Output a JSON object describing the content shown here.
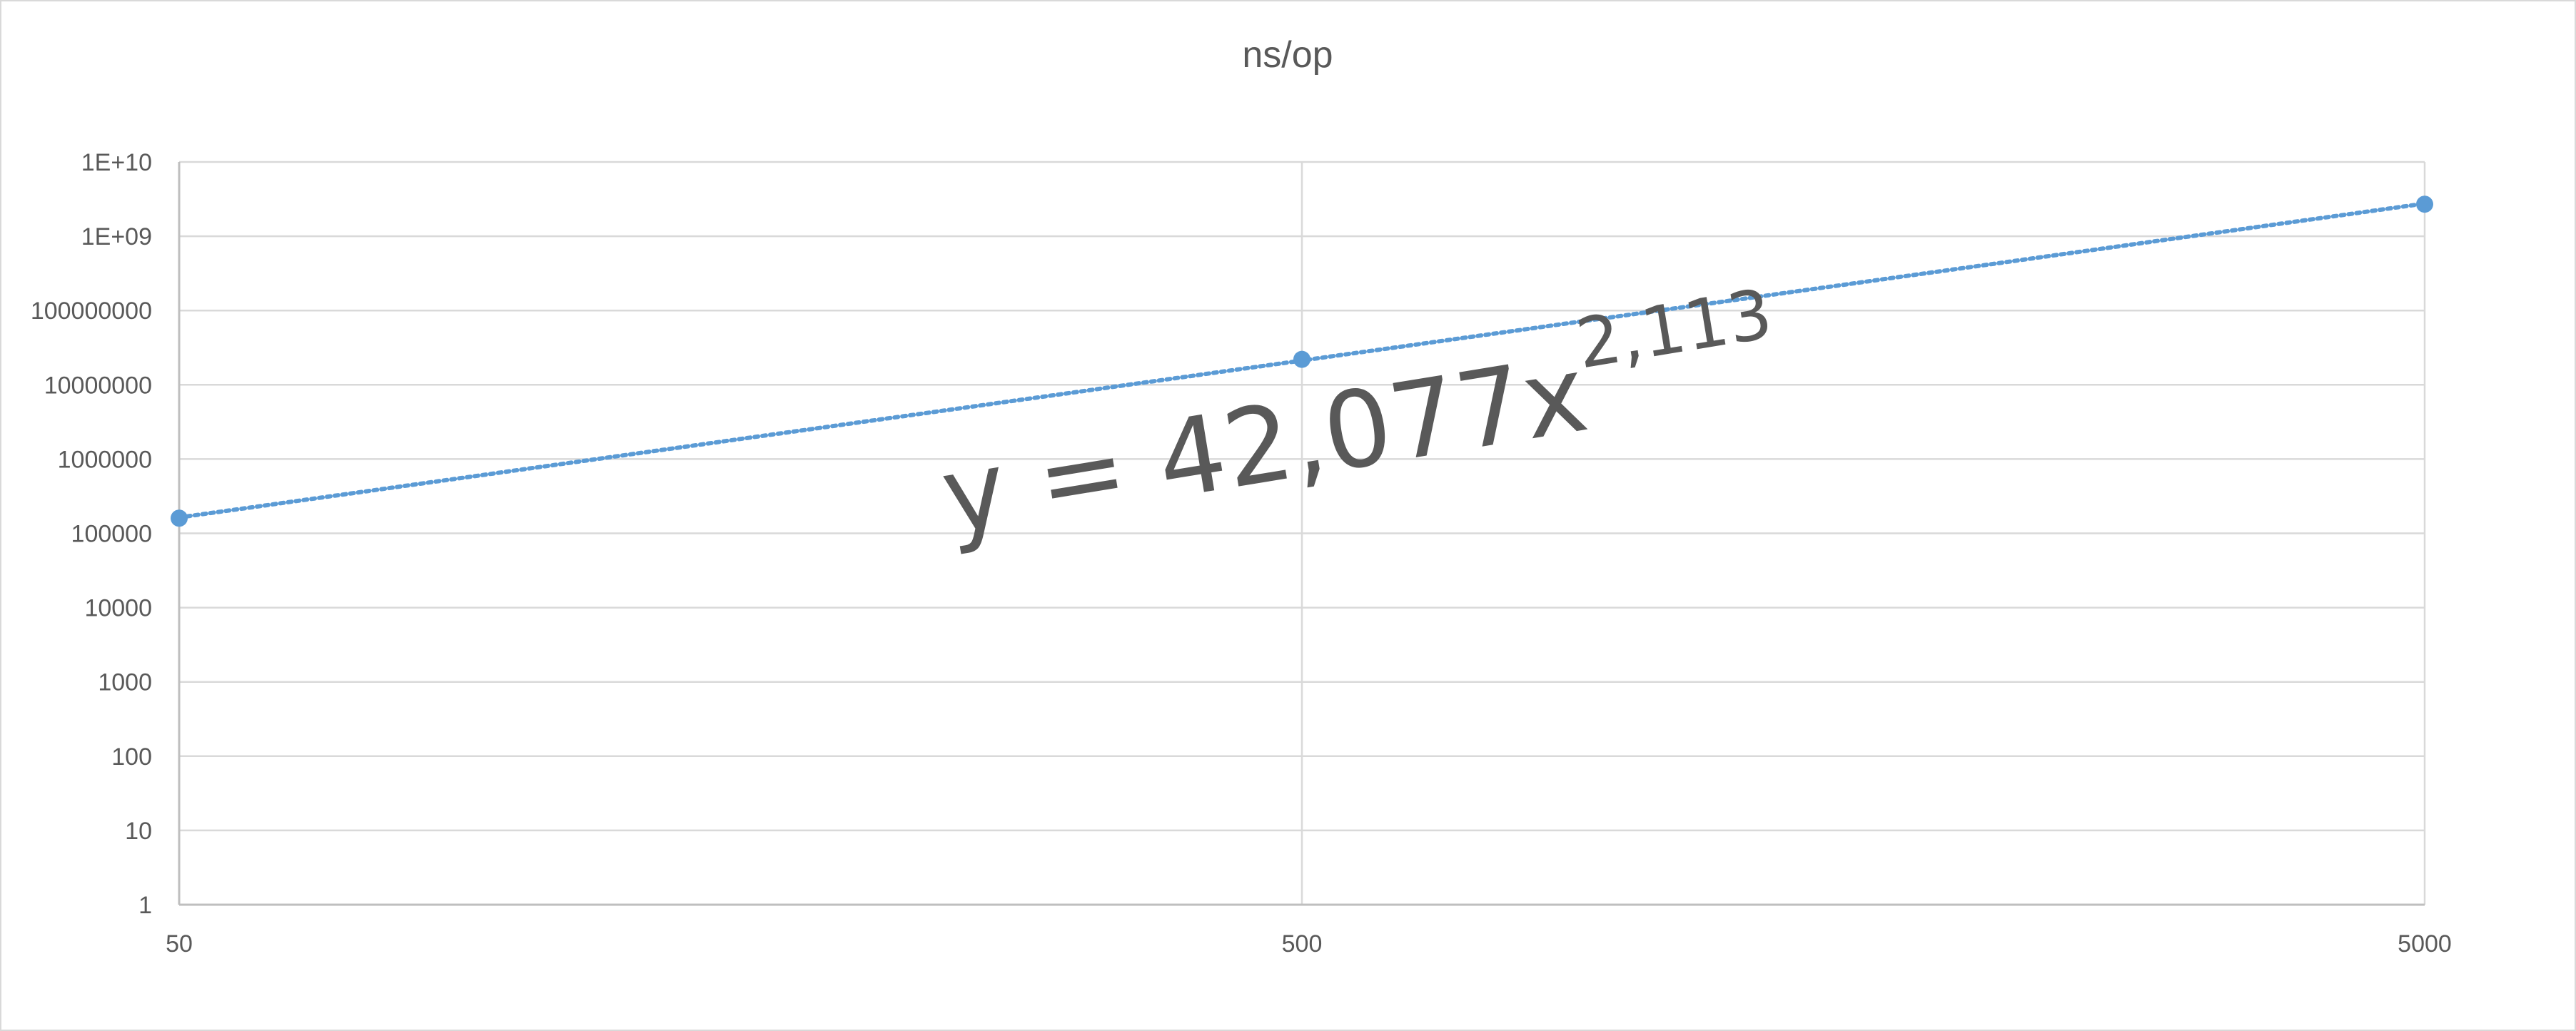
{
  "chart_data": {
    "type": "scatter",
    "title": "ns/op",
    "x_scale": "log",
    "y_scale": "log",
    "xlim": [
      50,
      5000
    ],
    "ylim": [
      1,
      10000000000
    ],
    "x_ticks": [
      50,
      500,
      5000
    ],
    "x_tick_labels": [
      "50",
      "500",
      "5000"
    ],
    "y_ticks": [
      1,
      10,
      100,
      1000,
      10000,
      100000,
      1000000,
      10000000,
      100000000,
      1000000000,
      10000000000
    ],
    "y_tick_labels": [
      "1",
      "10",
      "100",
      "1000",
      "10000",
      "100000",
      "1000000",
      "10000000",
      "100000000",
      "1E+09",
      "1E+10"
    ],
    "grid": true,
    "series": [
      {
        "x": [
          50,
          500,
          5000
        ],
        "y": [
          160000,
          22000000,
          2700000000
        ],
        "color": "#5b9bd5",
        "marker": "circle"
      }
    ],
    "trendline": {
      "type": "power",
      "coefficient": 42.077,
      "exponent": 2.113,
      "style": "dotted",
      "color": "#5b9bd5",
      "label_prefix": "y = 42,077x",
      "label_exponent": "2,113"
    }
  }
}
